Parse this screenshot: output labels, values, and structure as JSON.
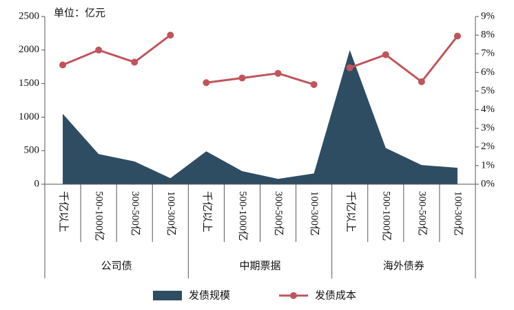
{
  "chart_data": {
    "type": "area_line",
    "annotation": "单位：亿元",
    "groups": [
      {
        "name": "公司债",
        "categories": [
          "千亿以上",
          "500-1000亿",
          "300-500亿",
          "100-300亿"
        ]
      },
      {
        "name": "中期票据",
        "categories": [
          "千亿以上",
          "500-1000亿",
          "300-500亿",
          "100-300亿"
        ]
      },
      {
        "name": "海外债券",
        "categories": [
          "千亿以上",
          "500-1000亿",
          "300-500亿",
          "100-300亿"
        ]
      }
    ],
    "series": [
      {
        "name": "发债规模",
        "type": "area",
        "color": "#2e4d63",
        "values": [
          1050,
          450,
          340,
          90,
          490,
          195,
          80,
          160,
          2000,
          540,
          285,
          245
        ]
      },
      {
        "name": "发债成本",
        "type": "line",
        "axis": "y2",
        "color": "#c0545a",
        "values": [
          6.4,
          7.2,
          6.55,
          8.0,
          5.45,
          5.7,
          5.95,
          5.35,
          6.25,
          6.95,
          5.5,
          7.95
        ]
      }
    ],
    "ylim": [
      0,
      2500
    ],
    "yticks": [
      0,
      500,
      1000,
      1500,
      2000,
      2500
    ],
    "y2lim": [
      0,
      9
    ],
    "y2ticks": [
      {
        "value": 0,
        "label": "0%"
      },
      {
        "value": 1,
        "label": "1%"
      },
      {
        "value": 2,
        "label": "2%"
      },
      {
        "value": 3,
        "label": "3%"
      },
      {
        "value": 4,
        "label": "4%"
      },
      {
        "value": 5,
        "label": "5%"
      },
      {
        "value": 6,
        "label": "6%"
      },
      {
        "value": 7,
        "label": "7%"
      },
      {
        "value": 8,
        "label": "8%"
      },
      {
        "value": 9,
        "label": "9%"
      }
    ],
    "legend": "bottom"
  }
}
